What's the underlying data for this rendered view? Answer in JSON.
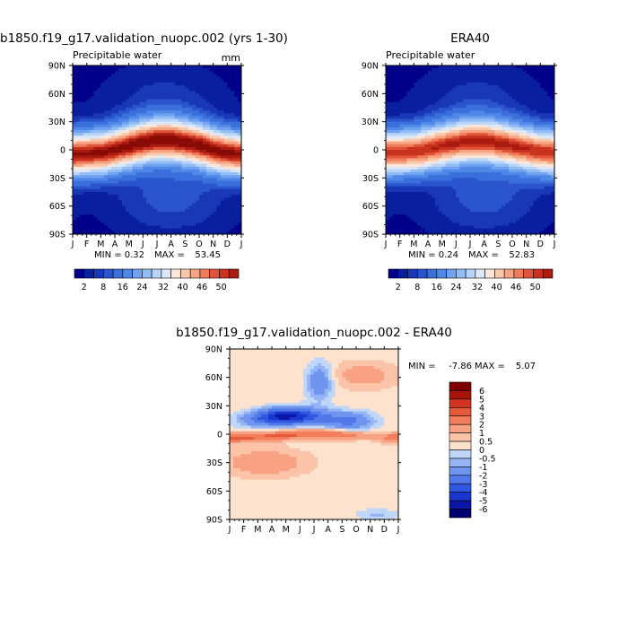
{
  "chart_data": [
    {
      "type": "heatmap",
      "title": "b1850.f19_g17.validation_nuopc.002 (yrs 1-30)",
      "subtitle": "Precipitable water",
      "units": "mm",
      "x_ticks": [
        "J",
        "F",
        "M",
        "A",
        "M",
        "J",
        "J",
        "A",
        "S",
        "O",
        "N",
        "D",
        "J"
      ],
      "y_ticks": [
        "90N",
        "60N",
        "30N",
        "0",
        "30S",
        "60S",
        "90S"
      ],
      "min_label": "MIN =",
      "min": "0.32",
      "max_label": "MAX =",
      "max": "53.45",
      "colorbar_labels": [
        "2",
        "8",
        "16",
        "24",
        "32",
        "40",
        "46",
        "50"
      ],
      "peak_latitude_by_month": [
        -5,
        -4,
        -3,
        0,
        4,
        8,
        10,
        10,
        8,
        5,
        0,
        -3,
        -5
      ]
    },
    {
      "type": "heatmap",
      "title": "ERA40",
      "subtitle": "Precipitable water",
      "x_ticks": [
        "J",
        "F",
        "M",
        "A",
        "M",
        "J",
        "J",
        "A",
        "S",
        "O",
        "N",
        "D",
        "J"
      ],
      "y_ticks": [
        "90N",
        "60N",
        "30N",
        "0",
        "30S",
        "60S",
        "90S"
      ],
      "min_label": "MIN =",
      "min": "0.24",
      "max_label": "MAX =",
      "max": "52.83",
      "colorbar_labels": [
        "2",
        "8",
        "16",
        "24",
        "32",
        "40",
        "46",
        "50"
      ],
      "peak_latitude_by_month": [
        -3,
        -3,
        -2,
        1,
        4,
        7,
        9,
        9,
        7,
        4,
        1,
        -2,
        -3
      ]
    },
    {
      "type": "heatmap",
      "title": "b1850.f19_g17.validation_nuopc.002 - ERA40",
      "x_ticks": [
        "J",
        "F",
        "M",
        "A",
        "M",
        "J",
        "J",
        "A",
        "S",
        "O",
        "N",
        "D",
        "J"
      ],
      "y_ticks": [
        "90N",
        "60N",
        "30N",
        "0",
        "30S",
        "60S",
        "90S"
      ],
      "min_label": "MIN =",
      "min": "-7.86",
      "max_label": "MAX =",
      "max": "5.07",
      "colorbar_labels": [
        "6",
        "5",
        "4",
        "3",
        "2",
        "1",
        "0.5",
        "0",
        "-0.5",
        "-1",
        "-2",
        "-3",
        "-4",
        "-5",
        "-6"
      ]
    }
  ],
  "colors": {
    "seq_palette": [
      "#00008b",
      "#0a1fa0",
      "#1838b8",
      "#2a55cc",
      "#3a6fdc",
      "#5088e8",
      "#6fa2f0",
      "#92bcf4",
      "#b8d4f8",
      "#dbe8fb",
      "#fbe6d8",
      "#fac8ac",
      "#f6a482",
      "#ef7c5c",
      "#e05538",
      "#c8321f",
      "#aa1b10",
      "#8a0a06"
    ],
    "diff_palette": [
      "#00006e",
      "#0a16a6",
      "#1a36cc",
      "#2f57e0",
      "#5078e8",
      "#6f95ee",
      "#94b4f4",
      "#c0d6f8",
      "#ffffff",
      "#fde2ce",
      "#fbc3a8",
      "#f8a283",
      "#f27e5c",
      "#e55a3a",
      "#cf3520",
      "#a81508",
      "#800000"
    ]
  }
}
